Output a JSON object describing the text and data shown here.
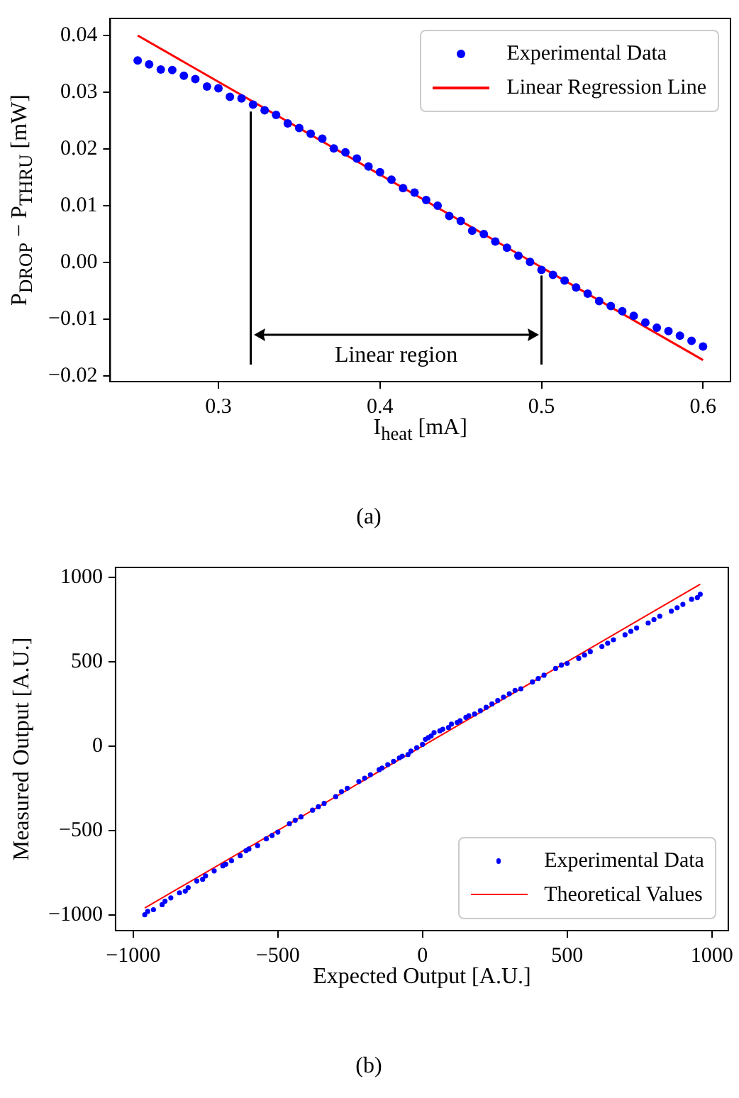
{
  "chart_data": [
    {
      "type": "scatter",
      "xlabel": "I$_{heat}$ [mA]",
      "ylabel": "P$_{DROP}$ − P$_{THRU}$ [mW]",
      "xlim": [
        0.233,
        0.617
      ],
      "ylim": [
        -0.021,
        0.043
      ],
      "xticks": [
        0.3,
        0.4,
        0.5,
        0.6
      ],
      "yticks": [
        {
          "value": -0.02,
          "label": "−0.02"
        },
        {
          "value": -0.01,
          "label": "−0.01"
        },
        {
          "value": 0,
          "label": "0.00"
        },
        0.01,
        0.02,
        0.03,
        0.04
      ],
      "grid": false,
      "legend": "top right",
      "annotations": [
        "(a)",
        "Linear region"
      ],
      "series": [
        {
          "name": "Experimental Data",
          "marker": "circle",
          "color": "#0000ff",
          "x": [
            0.25,
            0.2571,
            0.2643,
            0.2714,
            0.2786,
            0.2857,
            0.2929,
            0.3,
            0.3071,
            0.3143,
            0.3214,
            0.3286,
            0.3357,
            0.3429,
            0.35,
            0.3571,
            0.3643,
            0.3714,
            0.3786,
            0.3857,
            0.3929,
            0.4,
            0.4071,
            0.4143,
            0.4214,
            0.4286,
            0.4357,
            0.4429,
            0.45,
            0.4571,
            0.4643,
            0.4714,
            0.4786,
            0.4857,
            0.4929,
            0.5,
            0.5071,
            0.5143,
            0.5214,
            0.5286,
            0.5357,
            0.5429,
            0.55,
            0.5571,
            0.5643,
            0.5714,
            0.5786,
            0.5857,
            0.5929,
            0.6
          ],
          "values": [
            0.0356,
            0.0349,
            0.034,
            0.0339,
            0.0329,
            0.0323,
            0.031,
            0.0307,
            0.0292,
            0.0289,
            0.0278,
            0.0268,
            0.026,
            0.0245,
            0.0237,
            0.0227,
            0.0218,
            0.0201,
            0.0194,
            0.0183,
            0.0169,
            0.0159,
            0.0146,
            0.0131,
            0.0123,
            0.011,
            0.01,
            0.0082,
            0.0073,
            0.0056,
            0.005,
            0.0037,
            0.0026,
            0.0012,
            0.0001,
            -0.0013,
            -0.0022,
            -0.0032,
            -0.0044,
            -0.0055,
            -0.0068,
            -0.0077,
            -0.0086,
            -0.0094,
            -0.0106,
            -0.0115,
            -0.0121,
            -0.0129,
            -0.0138,
            -0.0148
          ]
        },
        {
          "name": "Linear Regression Line",
          "type": "line",
          "color": "#ff0000",
          "x": [
            0.25,
            0.6
          ],
          "values": [
            0.04,
            -0.0172
          ]
        },
        {
          "type": "line",
          "color": "#000000",
          "x": [
            0.32,
            0.32
          ],
          "values": [
            -0.018,
            0.0266
          ]
        },
        {
          "type": "line",
          "color": "#000000",
          "x": [
            0.5,
            0.5
          ],
          "values": [
            -0.018,
            -0.0023
          ]
        }
      ]
    },
    {
      "type": "scatter",
      "xlabel": "Expected Output [A.U.]",
      "ylabel": "Measured Output [A.U.]",
      "xlim": [
        -1061,
        1057
      ],
      "ylim": [
        -1094,
        1059
      ],
      "xticks": [
        {
          "value": -1000,
          "label": "−1000"
        },
        {
          "value": -500,
          "label": "−500"
        },
        0,
        500,
        1000
      ],
      "yticks": [
        {
          "value": -1000,
          "label": "−1000"
        },
        {
          "value": -500,
          "label": "−500"
        },
        0,
        500,
        1000
      ],
      "grid": false,
      "legend": "bottom right",
      "annotations": [
        "(b)"
      ],
      "series": [
        {
          "name": "Experimental Data",
          "marker": "circle",
          "color": "#0000ff",
          "x": [
            -960,
            -930,
            -900,
            -870,
            -840,
            -810,
            -780,
            -750,
            -720,
            -690,
            -660,
            -630,
            -600,
            -570,
            -540,
            -500,
            -460,
            -420,
            -380,
            -340,
            -300,
            -260,
            -220,
            -180,
            -140,
            -100,
            -70,
            -40,
            -20,
            0,
            10,
            30,
            60,
            90,
            120,
            150,
            180,
            220,
            260,
            300,
            340,
            380,
            420,
            460,
            500,
            540,
            580,
            620,
            660,
            700,
            740,
            780,
            820,
            860,
            900,
            930,
            960,
            -950,
            -890,
            -820,
            -760,
            -680,
            -610,
            -520,
            -440,
            -360,
            -280,
            -200,
            -150,
            -120,
            -80,
            -50,
            20,
            40,
            70,
            100,
            130,
            160,
            200,
            240,
            280,
            320,
            400,
            480,
            560,
            640,
            720,
            800,
            880,
            950
          ],
          "values": [
            -1000,
            -970,
            -940,
            -900,
            -870,
            -840,
            -800,
            -770,
            -740,
            -710,
            -680,
            -650,
            -610,
            -590,
            -550,
            -510,
            -460,
            -420,
            -380,
            -340,
            -300,
            -250,
            -210,
            -170,
            -130,
            -90,
            -60,
            -30,
            -10,
            10,
            40,
            60,
            90,
            110,
            140,
            170,
            190,
            230,
            270,
            310,
            340,
            380,
            420,
            460,
            490,
            520,
            560,
            590,
            630,
            660,
            700,
            730,
            770,
            800,
            840,
            870,
            900,
            -980,
            -920,
            -860,
            -790,
            -700,
            -620,
            -530,
            -440,
            -360,
            -270,
            -190,
            -140,
            -110,
            -70,
            -50,
            50,
            80,
            100,
            130,
            150,
            180,
            210,
            250,
            290,
            330,
            400,
            480,
            540,
            610,
            680,
            750,
            820,
            880
          ]
        },
        {
          "name": "Theoretical Values",
          "type": "line",
          "color": "#ff0000",
          "x": [
            -960,
            960
          ],
          "values": [
            -960,
            960
          ]
        }
      ]
    }
  ]
}
